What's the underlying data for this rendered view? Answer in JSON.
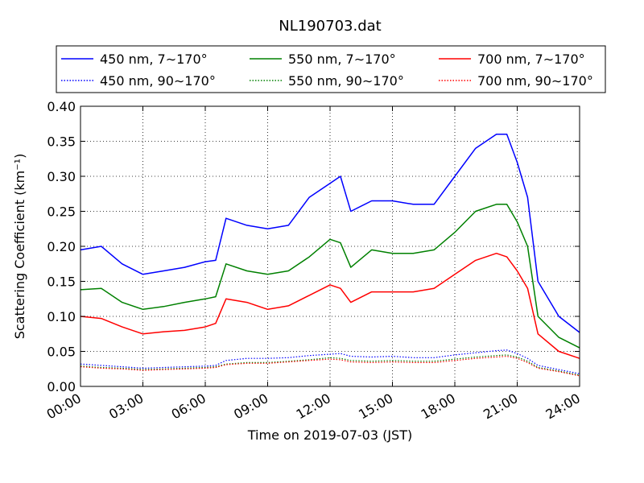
{
  "chart_data": {
    "type": "line",
    "title": "NL190703.dat",
    "xlabel": "Time on 2019-07-03 (JST)",
    "ylabel": "Scattering Coefficient (km⁻¹)",
    "xlim": [
      0,
      24
    ],
    "ylim": [
      0.0,
      0.4
    ],
    "x_ticks": [
      0,
      3,
      6,
      9,
      12,
      15,
      18,
      21,
      24
    ],
    "x_tick_labels": [
      "00:00",
      "03:00",
      "06:00",
      "09:00",
      "12:00",
      "15:00",
      "18:00",
      "21:00",
      "24:00"
    ],
    "y_ticks": [
      0.0,
      0.05,
      0.1,
      0.15,
      0.2,
      0.25,
      0.3,
      0.35,
      0.4
    ],
    "y_tick_labels": [
      "0.00",
      "0.05",
      "0.10",
      "0.15",
      "0.20",
      "0.25",
      "0.30",
      "0.35",
      "0.40"
    ],
    "grid": true,
    "legend_position": "top, above plot, 3 columns",
    "x": [
      0,
      1,
      2,
      3,
      4,
      5,
      6,
      6.5,
      7,
      8,
      9,
      10,
      11,
      12,
      12.5,
      13,
      14,
      15,
      16,
      17,
      18,
      19,
      20,
      20.5,
      21,
      21.5,
      22,
      23,
      24
    ],
    "series": [
      {
        "name": "450 nm, 7∼170°",
        "color": "#0000ff",
        "style": "solid",
        "values": [
          0.195,
          0.2,
          0.175,
          0.16,
          0.165,
          0.17,
          0.178,
          0.18,
          0.24,
          0.23,
          0.225,
          0.23,
          0.27,
          0.29,
          0.3,
          0.25,
          0.265,
          0.265,
          0.26,
          0.26,
          0.3,
          0.34,
          0.36,
          0.36,
          0.32,
          0.27,
          0.15,
          0.1,
          0.077
        ]
      },
      {
        "name": "450 nm, 90∼170°",
        "color": "#0000ff",
        "style": "dotted",
        "values": [
          0.032,
          0.03,
          0.028,
          0.026,
          0.027,
          0.028,
          0.029,
          0.03,
          0.037,
          0.04,
          0.04,
          0.041,
          0.044,
          0.046,
          0.047,
          0.043,
          0.042,
          0.043,
          0.041,
          0.041,
          0.045,
          0.048,
          0.051,
          0.052,
          0.047,
          0.04,
          0.03,
          0.024,
          0.018
        ]
      },
      {
        "name": "550 nm, 7∼170°",
        "color": "#008000",
        "style": "solid",
        "values": [
          0.138,
          0.14,
          0.12,
          0.11,
          0.114,
          0.12,
          0.125,
          0.128,
          0.175,
          0.165,
          0.16,
          0.165,
          0.185,
          0.21,
          0.205,
          0.17,
          0.195,
          0.19,
          0.19,
          0.195,
          0.22,
          0.25,
          0.26,
          0.26,
          0.235,
          0.2,
          0.1,
          0.07,
          0.055
        ]
      },
      {
        "name": "550 nm, 90∼170°",
        "color": "#008000",
        "style": "dotted",
        "values": [
          0.029,
          0.027,
          0.026,
          0.024,
          0.025,
          0.026,
          0.027,
          0.028,
          0.032,
          0.034,
          0.034,
          0.036,
          0.038,
          0.041,
          0.04,
          0.037,
          0.036,
          0.037,
          0.036,
          0.036,
          0.039,
          0.042,
          0.044,
          0.045,
          0.042,
          0.036,
          0.027,
          0.022,
          0.016
        ]
      },
      {
        "name": "700 nm, 7∼170°",
        "color": "#ff0000",
        "style": "solid",
        "values": [
          0.1,
          0.097,
          0.085,
          0.075,
          0.078,
          0.08,
          0.085,
          0.09,
          0.125,
          0.12,
          0.11,
          0.115,
          0.13,
          0.145,
          0.14,
          0.12,
          0.135,
          0.135,
          0.135,
          0.14,
          0.16,
          0.18,
          0.19,
          0.185,
          0.165,
          0.14,
          0.075,
          0.05,
          0.04
        ]
      },
      {
        "name": "700 nm, 90∼170°",
        "color": "#ff0000",
        "style": "dotted",
        "values": [
          0.028,
          0.026,
          0.025,
          0.023,
          0.024,
          0.025,
          0.026,
          0.027,
          0.031,
          0.033,
          0.033,
          0.035,
          0.037,
          0.039,
          0.038,
          0.035,
          0.034,
          0.035,
          0.034,
          0.034,
          0.037,
          0.04,
          0.042,
          0.043,
          0.04,
          0.034,
          0.026,
          0.021,
          0.015
        ]
      }
    ]
  }
}
